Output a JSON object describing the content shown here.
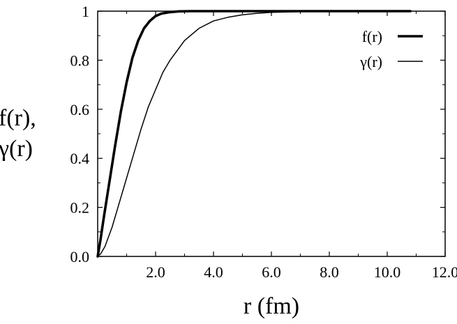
{
  "chart_data": {
    "type": "line",
    "title": "",
    "xlabel": "r (fm)",
    "ylabel": [
      "f(r),",
      "γ(r)"
    ],
    "xlim": [
      0,
      12
    ],
    "ylim": [
      0,
      1
    ],
    "x_ticks": [
      2,
      4,
      6,
      8,
      10,
      12
    ],
    "x_tick_labels": [
      "2.0",
      "4.0",
      "6.0",
      "8.0",
      "10.0",
      "12.0"
    ],
    "y_ticks": [
      0,
      0.2,
      0.4,
      0.6,
      0.8,
      1
    ],
    "y_tick_labels": [
      "0.0",
      "0.2",
      "0.4",
      "0.6",
      "0.8",
      "1"
    ],
    "grid": false,
    "legend_position": "top-right",
    "series": [
      {
        "name": "f(r)",
        "line": "thick",
        "color": "#000000",
        "x": [
          0,
          0.1,
          0.2,
          0.4,
          0.6,
          0.8,
          1.0,
          1.2,
          1.4,
          1.6,
          1.8,
          2.0,
          2.2,
          2.5,
          2.8,
          3.2,
          4.0,
          6.0,
          8.0,
          10.0,
          10.8
        ],
        "y": [
          0,
          0.07,
          0.15,
          0.3,
          0.45,
          0.59,
          0.71,
          0.81,
          0.88,
          0.93,
          0.96,
          0.98,
          0.99,
          0.996,
          0.999,
          1.0,
          1.0,
          1.0,
          1.0,
          1.0,
          1.0
        ]
      },
      {
        "name": "γ(r)",
        "line": "thin",
        "color": "#000000",
        "x": [
          0,
          0.1,
          0.25,
          0.5,
          0.75,
          1.0,
          1.25,
          1.5,
          1.75,
          2.0,
          2.25,
          2.5,
          2.75,
          3.0,
          3.5,
          4.0,
          4.5,
          5.0,
          5.5,
          6.0,
          7.0,
          8.0,
          9.0,
          10.0,
          10.8
        ],
        "y": [
          0,
          0.01,
          0.04,
          0.12,
          0.22,
          0.32,
          0.42,
          0.52,
          0.61,
          0.68,
          0.75,
          0.8,
          0.84,
          0.88,
          0.93,
          0.96,
          0.975,
          0.985,
          0.991,
          0.995,
          0.998,
          0.999,
          1.0,
          1.0,
          1.0
        ]
      }
    ]
  }
}
